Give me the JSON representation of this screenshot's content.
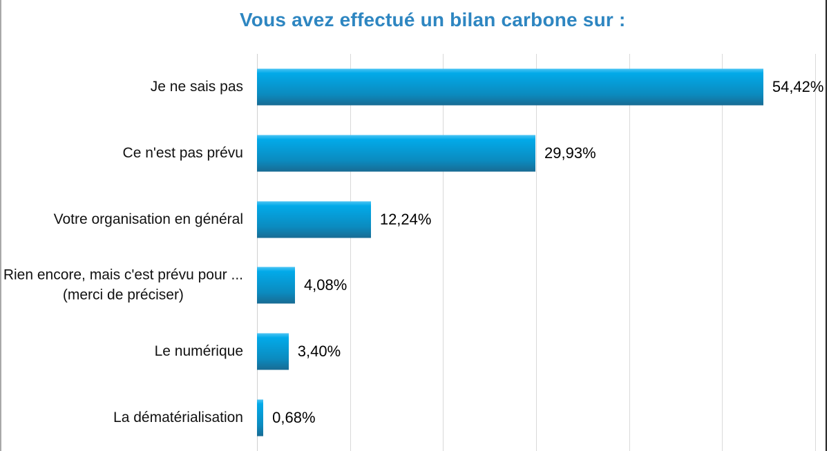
{
  "window": {
    "left_border_color": "#a8a8a8",
    "right_border_color": "#1c1c1c"
  },
  "chart_data": {
    "type": "bar",
    "orientation": "horizontal",
    "title": "Vous avez effectué un bilan carbone sur :",
    "title_color": "#2E86C1",
    "categories": [
      [
        "Je ne sais pas"
      ],
      [
        "Ce n'est pas prévu"
      ],
      [
        "Votre organisation en général"
      ],
      [
        "Rien encore, mais c'est prévu pour ...",
        "(merci de préciser)"
      ],
      [
        "Le numérique"
      ],
      [
        "La dématérialisation"
      ]
    ],
    "values": [
      54.42,
      29.93,
      12.24,
      4.08,
      3.4,
      0.68
    ],
    "value_labels": [
      "54,42%",
      "29,93%",
      "12,24%",
      "4,08%",
      "3,40%",
      "0,68%"
    ],
    "xlabel": "",
    "ylabel": "",
    "xlim": [
      0,
      60
    ],
    "grid_step": 10,
    "grid": true,
    "legend": false,
    "value_label_position": "outside-end",
    "bar_colors": {
      "highlight": "#4cc4f4",
      "top": "#02aae9",
      "mid": "#0b8bbf",
      "bottom": "#186b93"
    },
    "gridline_color": "#d9d9d9",
    "text_color": "#111111"
  }
}
